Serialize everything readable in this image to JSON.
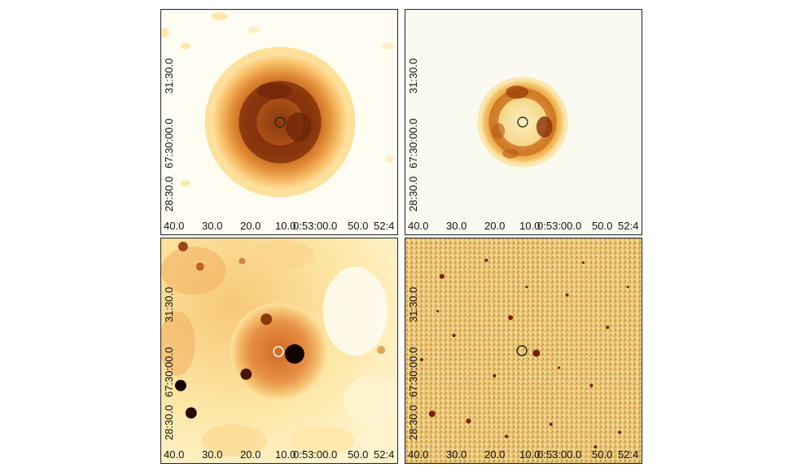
{
  "figure": {
    "panels": [
      {
        "id": "top-left",
        "xticks": [
          "40.0",
          "30.0",
          "20.0",
          "10.0",
          "0:53:00.0",
          "50.0",
          "52:4"
        ],
        "yticks": [
          "31:30.0",
          "67:30:00.0",
          "28:30.0"
        ],
        "colors": {
          "background": "#fffcf2",
          "halo": "#f8b45a",
          "ring": "#b45314",
          "ring_dark": "#7a2a08",
          "marker": "#222222"
        }
      },
      {
        "id": "top-right",
        "xticks": [
          "40.0",
          "30.0",
          "20.0",
          "10.0",
          "0:53:00.0",
          "50.0",
          "52:4"
        ],
        "yticks": [
          "31:30.0",
          "67:30:00.0",
          "28:30.0"
        ],
        "colors": {
          "background": "#fbfaf0",
          "halo": "#fbd68a",
          "ring": "#d4801f",
          "ring_dark": "#8a3408",
          "marker": "#222222"
        }
      },
      {
        "id": "bottom-left",
        "xticks": [
          "40.0",
          "30.0",
          "20.0",
          "10.0",
          "0:53:00.0",
          "50.0",
          "52:4"
        ],
        "yticks": [
          "31:30.0",
          "67:30:00.0",
          "28:30.0"
        ],
        "colors": {
          "background": "#fde9a8",
          "halo": "#e58a36",
          "ring": "#b85a1a",
          "ring_dark": "#5a1a04",
          "marker": "#ffffff"
        }
      },
      {
        "id": "bottom-right",
        "xticks": [
          "40.0",
          "30.0",
          "20.0",
          "10.0",
          "0:53:00.0",
          "50.0",
          "52:4"
        ],
        "yticks": [
          "31:30.0",
          "67:30:00.0",
          "28:30.0"
        ],
        "colors": {
          "background": "#e8c46c",
          "halo": "#f0d88e",
          "ring": "#9a4a12",
          "ring_dark": "#4a1004",
          "marker": "#111111"
        }
      }
    ]
  }
}
